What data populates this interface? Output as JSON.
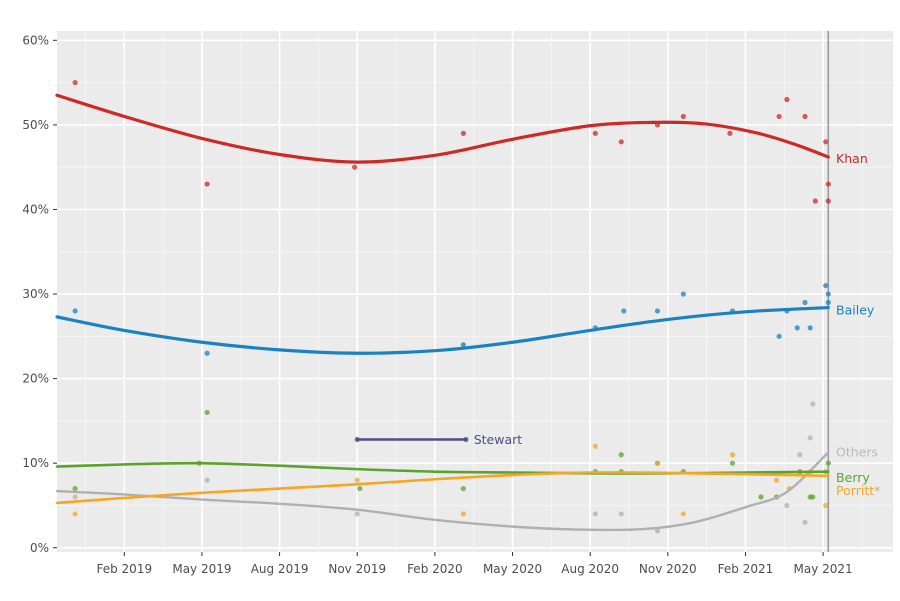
{
  "chart_data": {
    "type": "scatter",
    "title": "",
    "x_axis": {
      "range": [
        -1.6,
        30.7
      ],
      "ticks": [
        {
          "label": "Feb 2019",
          "m": 1
        },
        {
          "label": "May 2019",
          "m": 4
        },
        {
          "label": "Aug 2019",
          "m": 7
        },
        {
          "label": "Nov 2019",
          "m": 10
        },
        {
          "label": "Feb 2020",
          "m": 13
        },
        {
          "label": "May 2020",
          "m": 16
        },
        {
          "label": "Aug 2020",
          "m": 19
        },
        {
          "label": "Nov 2020",
          "m": 22
        },
        {
          "label": "Feb 2021",
          "m": 25
        },
        {
          "label": "May 2021",
          "m": 28
        }
      ]
    },
    "y_axis": {
      "range": [
        -0.5,
        61.1
      ],
      "ticks": [
        {
          "label": "0%",
          "v": 0
        },
        {
          "label": "10%",
          "v": 10
        },
        {
          "label": "20%",
          "v": 20
        },
        {
          "label": "30%",
          "v": 30
        },
        {
          "label": "40%",
          "v": 40
        },
        {
          "label": "50%",
          "v": 50
        },
        {
          "label": "60%",
          "v": 60
        }
      ]
    },
    "election_line": {
      "m": 28.2
    },
    "point_style": {
      "radius": 2.6,
      "opacity": 0.75
    },
    "style": {
      "background": "#ffffff",
      "panel_bg": "#ebebeb",
      "grid_major": "#ffffff",
      "grid_minor": "rgba(255,255,255,0.55)",
      "axis_text": "#4d4d4d",
      "tick_mark": "#333333",
      "election_line_color": "#9b9b9b"
    },
    "series": [
      {
        "id": "khan",
        "name": "Khan",
        "color": "#cd2a26",
        "width": 3.2,
        "label": {
          "text": "Khan",
          "m": 28.5,
          "pct": 46.0
        },
        "points": [
          [
            -0.9,
            55
          ],
          [
            4.2,
            43
          ],
          [
            9.9,
            45
          ],
          [
            14.1,
            49
          ],
          [
            19.2,
            49
          ],
          [
            20.2,
            48
          ],
          [
            21.6,
            50
          ],
          [
            22.6,
            51
          ],
          [
            24.4,
            49
          ],
          [
            26.3,
            51
          ],
          [
            26.6,
            53
          ],
          [
            27.3,
            51
          ],
          [
            27.7,
            41
          ],
          [
            28.1,
            48
          ],
          [
            28.2,
            43
          ],
          [
            28.2,
            41
          ]
        ],
        "trend": [
          [
            -1.6,
            53.5
          ],
          [
            1,
            51.0
          ],
          [
            4,
            48.4
          ],
          [
            7,
            46.5
          ],
          [
            10,
            45.6
          ],
          [
            13,
            46.4
          ],
          [
            16,
            48.3
          ],
          [
            19,
            49.9
          ],
          [
            21.5,
            50.3
          ],
          [
            23.5,
            50.1
          ],
          [
            25.5,
            49.0
          ],
          [
            27,
            47.6
          ],
          [
            28.2,
            46.2
          ]
        ]
      },
      {
        "id": "bailey",
        "name": "Bailey",
        "color": "#1982c4",
        "width": 3.2,
        "label": {
          "text": "Bailey",
          "m": 28.5,
          "pct": 28.1
        },
        "points": [
          [
            -0.9,
            28
          ],
          [
            4.2,
            23
          ],
          [
            14.1,
            24
          ],
          [
            19.2,
            26
          ],
          [
            20.3,
            28
          ],
          [
            21.6,
            28
          ],
          [
            22.6,
            30
          ],
          [
            24.5,
            28
          ],
          [
            26.3,
            25
          ],
          [
            26.6,
            28
          ],
          [
            27.0,
            26
          ],
          [
            27.3,
            29
          ],
          [
            27.5,
            26
          ],
          [
            28.1,
            31
          ],
          [
            28.2,
            29
          ],
          [
            28.2,
            30
          ]
        ],
        "trend": [
          [
            -1.6,
            27.3
          ],
          [
            1,
            25.7
          ],
          [
            4,
            24.3
          ],
          [
            7,
            23.4
          ],
          [
            10,
            23.0
          ],
          [
            13,
            23.3
          ],
          [
            16,
            24.3
          ],
          [
            19,
            25.7
          ],
          [
            22,
            27.0
          ],
          [
            25,
            27.9
          ],
          [
            28.2,
            28.4
          ]
        ]
      },
      {
        "id": "stewart",
        "name": "Stewart",
        "color": "#4f4c8a",
        "width": 2.6,
        "label": {
          "text": "Stewart",
          "m": 14.5,
          "pct": 12.8
        },
        "points": [
          [
            10,
            12.8
          ],
          [
            14.2,
            12.8
          ]
        ],
        "trend": [
          [
            10,
            12.8
          ],
          [
            14.2,
            12.8
          ]
        ]
      },
      {
        "id": "others",
        "name": "Others",
        "color": "#b0b0b0",
        "label_color": "#b9b9b9",
        "width": 2.4,
        "label": {
          "text": "Others",
          "m": 28.5,
          "pct": 11.3
        },
        "points": [
          [
            -0.9,
            6
          ],
          [
            4.2,
            8
          ],
          [
            10,
            4
          ],
          [
            19.2,
            4
          ],
          [
            20.2,
            4
          ],
          [
            21.6,
            2
          ],
          [
            26.6,
            5
          ],
          [
            27.1,
            11
          ],
          [
            27.3,
            3
          ],
          [
            27.5,
            13
          ],
          [
            27.6,
            17
          ]
        ],
        "trend": [
          [
            -1.6,
            6.7
          ],
          [
            1,
            6.3
          ],
          [
            4,
            5.7
          ],
          [
            7,
            5.2
          ],
          [
            10,
            4.5
          ],
          [
            13,
            3.3
          ],
          [
            16,
            2.5
          ],
          [
            18.5,
            2.15
          ],
          [
            21,
            2.2
          ],
          [
            23,
            3.0
          ],
          [
            25,
            4.8
          ],
          [
            26.6,
            6.6
          ],
          [
            28.2,
            11.3
          ]
        ]
      },
      {
        "id": "berry",
        "name": "Berry",
        "color": "#5aa42c",
        "width": 2.6,
        "label": {
          "text": "Berry",
          "m": 28.5,
          "pct": 8.3
        },
        "points": [
          [
            -0.9,
            7
          ],
          [
            3.9,
            10
          ],
          [
            4.2,
            16
          ],
          [
            10.1,
            7
          ],
          [
            14.1,
            7
          ],
          [
            19.2,
            9
          ],
          [
            20.2,
            9
          ],
          [
            20.2,
            11
          ],
          [
            21.6,
            10
          ],
          [
            22.6,
            9
          ],
          [
            24.5,
            10
          ],
          [
            25.6,
            6
          ],
          [
            26.2,
            6
          ],
          [
            27.1,
            9
          ],
          [
            27.5,
            6
          ],
          [
            27.6,
            6
          ],
          [
            28.2,
            10
          ]
        ],
        "trend": [
          [
            -1.6,
            9.6
          ],
          [
            1.5,
            9.9
          ],
          [
            4,
            10.0
          ],
          [
            7,
            9.7
          ],
          [
            10,
            9.3
          ],
          [
            13,
            9.0
          ],
          [
            16,
            8.9
          ],
          [
            19,
            8.8
          ],
          [
            22,
            8.8
          ],
          [
            25,
            8.9
          ],
          [
            28.2,
            9.0
          ]
        ]
      },
      {
        "id": "porritt",
        "name": "Porritt",
        "color": "#f5a623",
        "width": 2.6,
        "label": {
          "text": "Porritt*",
          "m": 28.5,
          "pct": 6.8
        },
        "points": [
          [
            -0.9,
            4
          ],
          [
            10,
            8
          ],
          [
            14.1,
            4
          ],
          [
            19.2,
            12
          ],
          [
            21.6,
            10
          ],
          [
            22.6,
            4
          ],
          [
            24.5,
            11
          ],
          [
            26.2,
            8
          ],
          [
            26.7,
            7
          ],
          [
            27.5,
            9
          ],
          [
            28.1,
            9
          ],
          [
            28.1,
            5
          ]
        ],
        "trend": [
          [
            -1.6,
            5.3
          ],
          [
            1.5,
            6.0
          ],
          [
            4,
            6.5
          ],
          [
            7,
            7.0
          ],
          [
            10,
            7.5
          ],
          [
            13,
            8.1
          ],
          [
            16,
            8.6
          ],
          [
            19,
            8.9
          ],
          [
            22,
            8.85
          ],
          [
            25,
            8.7
          ],
          [
            28.2,
            8.5
          ]
        ]
      }
    ]
  }
}
